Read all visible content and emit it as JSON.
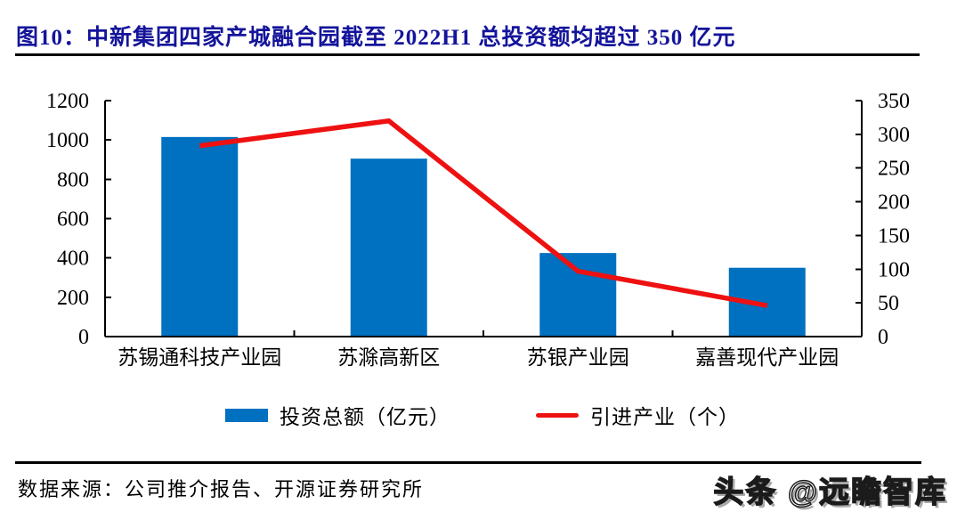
{
  "figure": {
    "title": "图10：中新集团四家产城融合园截至 2022H1 总投资额均超过 350 亿元",
    "source": "数据来源：公司推介报告、开源证券研究所",
    "watermark": "头条 @远瞻智库"
  },
  "colors": {
    "title": "#14149B",
    "bar": "#0070C0",
    "line": "#EE1111",
    "axis": "#000000",
    "text": "#000000"
  },
  "chart_data": {
    "type": "bar",
    "subtype": "combo bar + line, dual axis",
    "title": "图10：中新集团四家产城融合园截至 2022H1 总投资额均超过 350 亿元",
    "categories": [
      "苏锡通科技产业园",
      "苏滁高新区",
      "苏银产业园",
      "嘉善现代产业园"
    ],
    "series": [
      {
        "name": "投资总额（亿元）",
        "type": "bar",
        "axis": "left",
        "color": "#0070C0",
        "values": [
          1015,
          905,
          425,
          350
        ]
      },
      {
        "name": "引进产业（个）",
        "type": "line",
        "axis": "right",
        "color": "#EE1111",
        "values": [
          283,
          320,
          97,
          46
        ]
      }
    ],
    "left_axis": {
      "min": 0,
      "max": 1200,
      "step": 200,
      "tick_labels": [
        "0",
        "200",
        "400",
        "600",
        "800",
        "1000",
        "1200"
      ]
    },
    "right_axis": {
      "min": 0,
      "max": 350,
      "step": 50,
      "tick_labels": [
        "0",
        "50",
        "100",
        "150",
        "200",
        "250",
        "300",
        "350"
      ]
    },
    "legend_position": "bottom",
    "grid": false
  }
}
